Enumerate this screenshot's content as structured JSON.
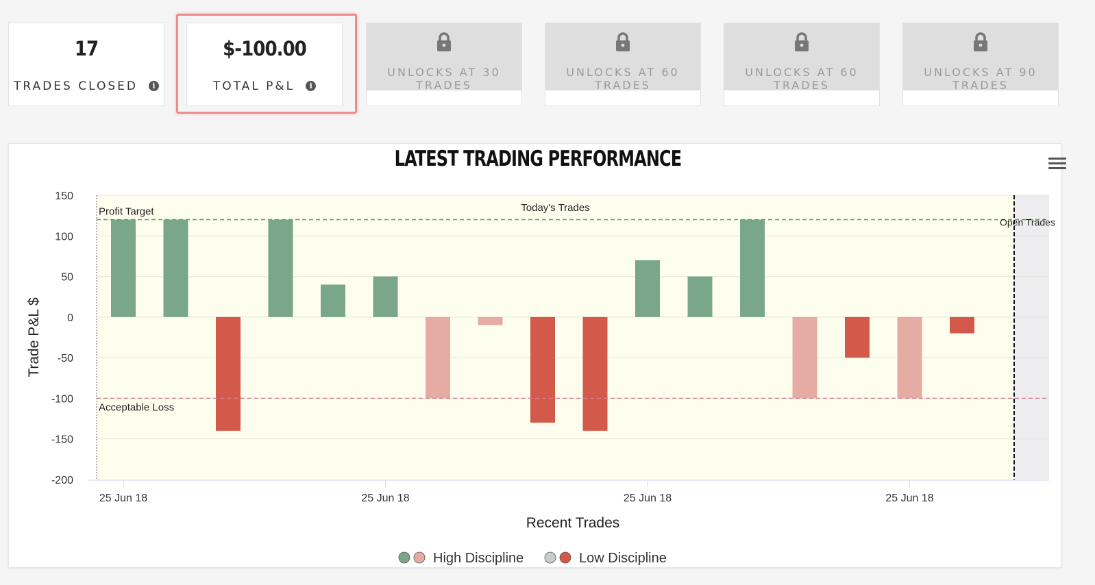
{
  "stats": [
    {
      "value": "17",
      "label": "TRADES CLOSED"
    },
    {
      "value": "$-100.00",
      "label": "TOTAL P&L"
    }
  ],
  "info_icon": "info-icon",
  "locked_cards": [
    {
      "label": "UNLOCKS AT 30 TRADES"
    },
    {
      "label": "UNLOCKS AT 60 TRADES"
    },
    {
      "label": "UNLOCKS AT 60 TRADES"
    },
    {
      "label": "UNLOCKS AT 90 TRADES"
    }
  ],
  "lock_icon": "lock-icon",
  "menu_icon": "hamburger-menu-icon",
  "colors": {
    "high_win": "#7aa68a",
    "high_loss": "#e6aba2",
    "low_win": "#c5cfc8",
    "low_loss": "#d35a4a",
    "plot_bg": "#fefeef",
    "open_bg": "#ededf0",
    "target_line": "#6aa66a",
    "loss_line": "#d77a90"
  },
  "chart_data": {
    "type": "bar",
    "title": "LATEST TRADING PERFORMANCE",
    "xlabel": "Recent Trades",
    "ylabel": "Trade P&L $",
    "ylim": [
      -200,
      150
    ],
    "yticks": [
      150,
      100,
      50,
      0,
      -50,
      -100,
      -150,
      -200
    ],
    "xtick_labels": [
      "25 Jun 18",
      "25 Jun 18",
      "25 Jun 18",
      "25 Jun 18"
    ],
    "xtick_at_trade": [
      1,
      6,
      11,
      16
    ],
    "values": [
      120,
      120,
      -140,
      120,
      40,
      50,
      -100,
      -10,
      -130,
      -140,
      70,
      50,
      120,
      -100,
      -50,
      -100,
      -20
    ],
    "discipline": [
      "high",
      "high",
      "low",
      "high",
      "high",
      "high",
      "high",
      "high",
      "low",
      "low",
      "high",
      "high",
      "high",
      "high",
      "low",
      "high",
      "low"
    ],
    "profit_target": {
      "value": 120,
      "label": "Profit Target"
    },
    "acceptable_loss": {
      "value": -100,
      "label": "Acceptable Loss"
    },
    "band_labels": {
      "today": "Today's Trades",
      "open": "Open Trades"
    },
    "legend": [
      {
        "label": "High Discipline",
        "colors": [
          "#7aa68a",
          "#e6aba2"
        ]
      },
      {
        "label": "Low Discipline",
        "colors": [
          "#c5cfc8",
          "#d35a4a"
        ]
      }
    ]
  }
}
